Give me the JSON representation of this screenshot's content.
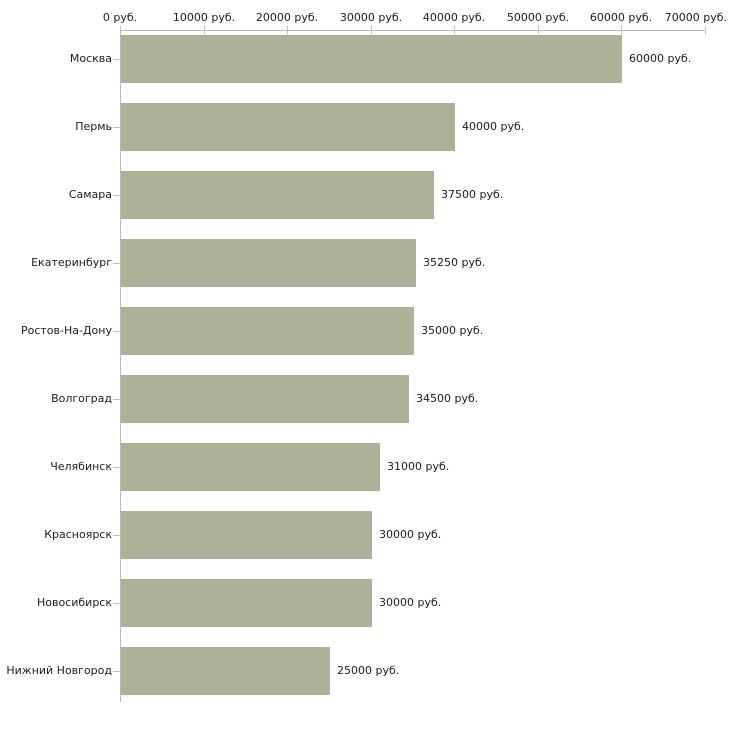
{
  "chart_data": {
    "type": "bar",
    "orientation": "horizontal",
    "title": "",
    "unit": "руб.",
    "categories": [
      "Москва",
      "Пермь",
      "Самара",
      "Екатеринбург",
      "Ростов-На-Дону",
      "Волгоград",
      "Челябинск",
      "Красноярск",
      "Новосибирск",
      "Нижний Новгород"
    ],
    "values": [
      60000,
      40000,
      37500,
      35250,
      35000,
      34500,
      31000,
      30000,
      30000,
      25000
    ],
    "value_labels": [
      "60000 руб.",
      "40000 руб.",
      "37500 руб.",
      "35250 руб.",
      "35000 руб.",
      "34500 руб.",
      "31000 руб.",
      "30000 руб.",
      "30000 руб.",
      "25000 руб."
    ],
    "x_tick_values": [
      0,
      10000,
      20000,
      30000,
      40000,
      50000,
      60000,
      70000
    ],
    "x_tick_labels": [
      "0 руб.",
      "10000 руб.",
      "20000 руб.",
      "30000 руб.",
      "40000 руб.",
      "50000 руб.",
      "60000 руб.",
      "70000 руб."
    ],
    "xlim": [
      0,
      70000
    ],
    "axis_position": "top",
    "grid": false,
    "legend": false,
    "colors": {
      "bar": "#acb198",
      "axis_line": "#b9b9b9",
      "tick": "#c6c6a0",
      "text": "#1c1c1c",
      "background": "#ffffff"
    }
  }
}
